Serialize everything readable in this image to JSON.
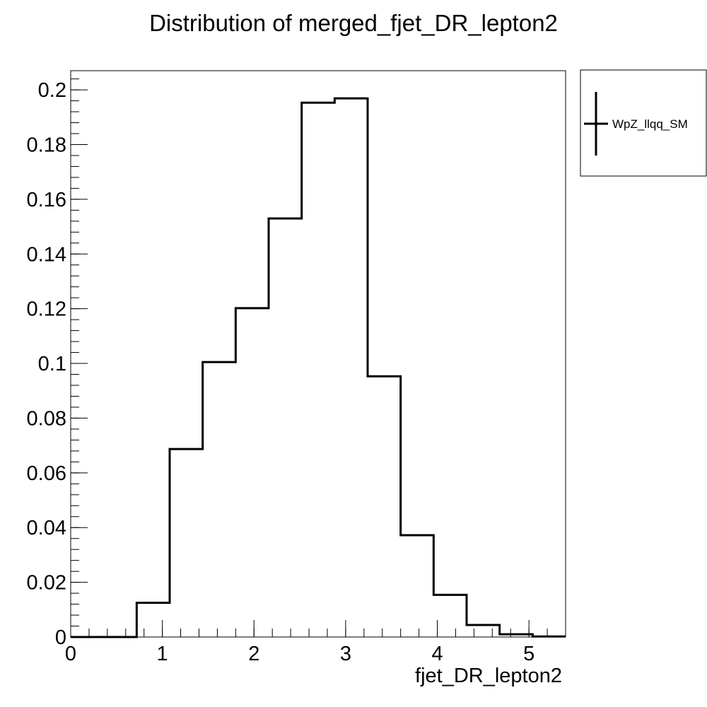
{
  "chart_data": {
    "type": "bar",
    "title": "Distribution of merged_fjet_DR_lepton2",
    "xlabel": "fjet_DR_lepton2",
    "ylabel": "",
    "xlim": [
      0,
      5.4
    ],
    "ylim": [
      0,
      0.207
    ],
    "bin_edges": [
      0,
      0.36,
      0.72,
      1.08,
      1.44,
      1.8,
      2.16,
      2.52,
      2.88,
      3.24,
      3.6,
      3.96,
      4.32,
      4.68,
      5.04,
      5.4
    ],
    "values": [
      0,
      0,
      0.0125,
      0.0687,
      0.1005,
      0.1202,
      0.153,
      0.1953,
      0.1969,
      0.0953,
      0.0372,
      0.0154,
      0.0044,
      0.001,
      0.0002
    ],
    "x_ticks": [
      0,
      1,
      2,
      3,
      4,
      5
    ],
    "x_tick_labels": [
      "0",
      "1",
      "2",
      "3",
      "4",
      "5"
    ],
    "y_ticks": [
      0,
      0.02,
      0.04,
      0.06,
      0.08,
      0.1,
      0.12,
      0.14,
      0.16,
      0.18,
      0.2
    ],
    "y_tick_labels": [
      "0",
      "0.02",
      "0.04",
      "0.06",
      "0.08",
      "0.1",
      "0.12",
      "0.14",
      "0.16",
      "0.18",
      "0.2"
    ],
    "grid": false,
    "legend": {
      "position": "right",
      "entries": [
        "WpZ_llqq_SM"
      ]
    },
    "color": "#000000"
  }
}
